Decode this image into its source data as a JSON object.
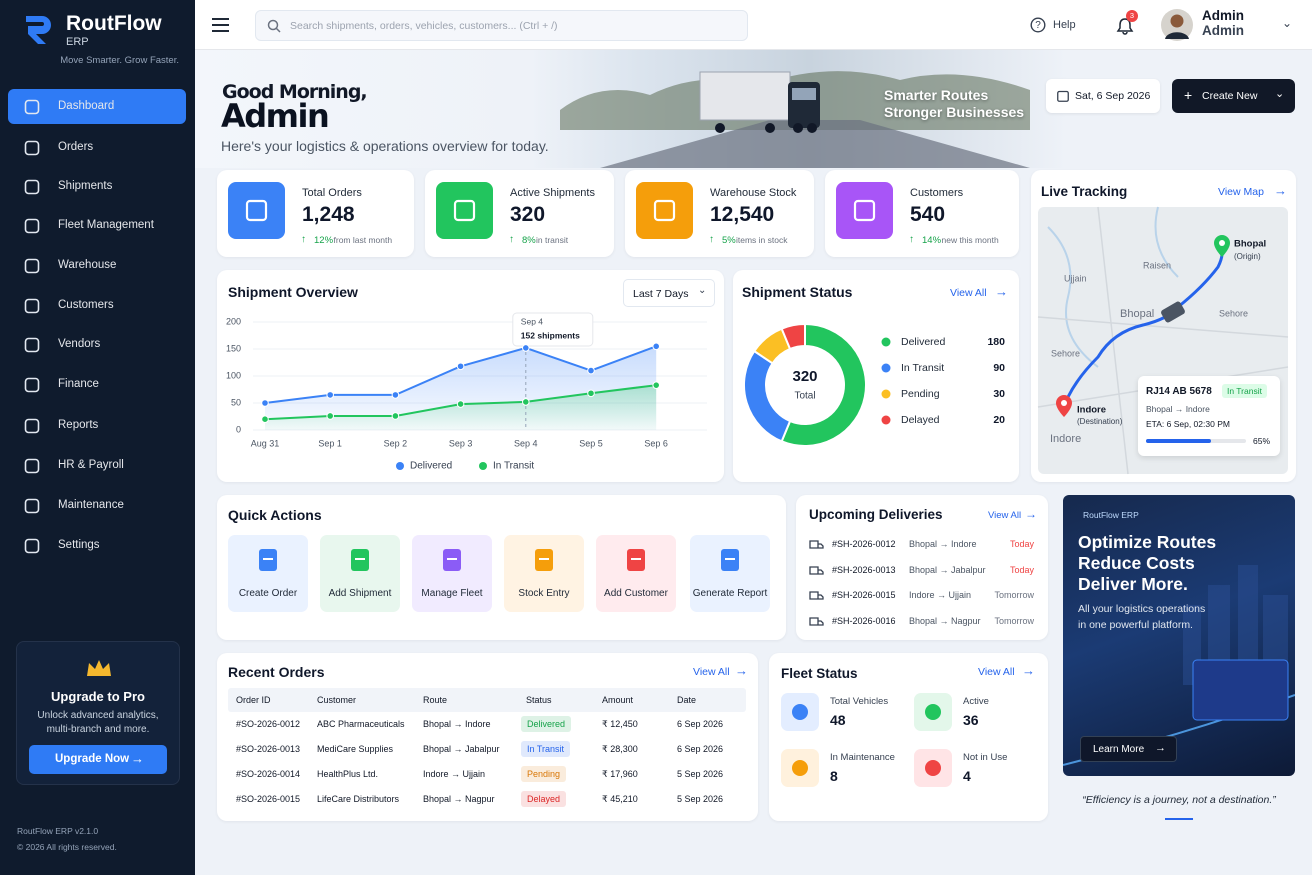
{
  "brand": {
    "name": "RoutFlow",
    "product": "ERP",
    "tagline": "Move Smarter. Grow Faster."
  },
  "nav": [
    {
      "label": "Dashboard",
      "active": true
    },
    {
      "label": "Orders"
    },
    {
      "label": "Shipments"
    },
    {
      "label": "Fleet Management"
    },
    {
      "label": "Warehouse"
    },
    {
      "label": "Customers"
    },
    {
      "label": "Vendors"
    },
    {
      "label": "Finance"
    },
    {
      "label": "Reports"
    },
    {
      "label": "HR & Payroll"
    },
    {
      "label": "Maintenance"
    },
    {
      "label": "Settings"
    }
  ],
  "upgrade": {
    "title": "Upgrade to Pro",
    "lines": [
      "Unlock advanced analytics,",
      "multi-branch and more."
    ],
    "button": "Upgrade Now"
  },
  "footer": {
    "version": "RoutFlow ERP v2.1.0",
    "copyright": "© 2026 All rights reserved."
  },
  "topbar": {
    "search": "Search shipments, orders, vehicles, customers... (Ctrl + /)",
    "help": "Help",
    "notifications": "3",
    "user": "Admin",
    "role": "Admin"
  },
  "hero": {
    "greeting": "Good Morning,",
    "name": "Admin",
    "subtitle": "Here's your logistics & operations overview for today.",
    "banner": [
      "Smarter Routes",
      "Stronger Businesses"
    ],
    "date": "Sat, 6 Sep 2026",
    "create": "Create New"
  },
  "stats": [
    {
      "label": "Total Orders",
      "value": "1,248",
      "change": "12%",
      "note": "from last month",
      "color": "#3b82f6"
    },
    {
      "label": "Active Shipments",
      "value": "320",
      "change": "8%",
      "note": "in transit",
      "color": "#22c55e"
    },
    {
      "label": "Warehouse Stock",
      "value": "12,540",
      "change": "5%",
      "note": "items in stock",
      "color": "#f59e0b"
    },
    {
      "label": "Customers",
      "value": "540",
      "change": "14%",
      "note": "new this month",
      "color": "#a855f7"
    }
  ],
  "chart_data": [
    {
      "type": "line",
      "title": "Shipment Overview",
      "filter": "Last 7 Days",
      "categories": [
        "Aug 31",
        "Sep 1",
        "Sep 2",
        "Sep 3",
        "Sep 4",
        "Sep 5",
        "Sep 6"
      ],
      "series": [
        {
          "name": "Delivered",
          "color": "#3b82f6",
          "values": [
            50,
            65,
            65,
            118,
            152,
            110,
            155
          ]
        },
        {
          "name": "In Transit",
          "color": "#22c55e",
          "values": [
            20,
            26,
            26,
            48,
            52,
            68,
            83
          ]
        }
      ],
      "ylim": [
        0,
        200
      ],
      "yticks": [
        0,
        50,
        100,
        150,
        200
      ],
      "grid": true,
      "tooltip": {
        "date": "Sep 4",
        "text": "152 shipments"
      }
    },
    {
      "type": "pie",
      "title": "Shipment Status",
      "view_all": "View All",
      "total": "320",
      "total_label": "Total",
      "categories": [
        "Delivered",
        "In Transit",
        "Pending",
        "Delayed"
      ],
      "values": [
        180,
        90,
        30,
        20
      ],
      "colors": [
        "#22c55e",
        "#3b82f6",
        "#fbbf24",
        "#ef4444"
      ]
    }
  ],
  "live_tracking": {
    "title": "Live Tracking",
    "view_map": "View Map",
    "places": [
      "Ujjain",
      "Raisen",
      "Bhopal",
      "Sehore",
      "Sehore",
      "Indore"
    ],
    "origin": {
      "name": "Bhopal",
      "note": "(Origin)"
    },
    "destination": {
      "name": "Indore",
      "note": "(Destination)"
    },
    "vehicle": "RJ14 AB 5678",
    "status": "In Transit",
    "route": "Bhopal → Indore",
    "eta": "ETA: 6 Sep, 02:30 PM",
    "progress": 65,
    "progress_label": "65%"
  },
  "quick_actions": {
    "title": "Quick Actions",
    "items": [
      {
        "label": "Create Order",
        "color": "#3b82f6",
        "bg": "#eaf2ff"
      },
      {
        "label": "Add Shipment",
        "color": "#22c55e",
        "bg": "#e8f7ee"
      },
      {
        "label": "Manage Fleet",
        "color": "#8b5cf6",
        "bg": "#f1ebff"
      },
      {
        "label": "Stock Entry",
        "color": "#f59e0b",
        "bg": "#fff3e3"
      },
      {
        "label": "Add Customer",
        "color": "#ef4444",
        "bg": "#ffebee"
      },
      {
        "label": "Generate Report",
        "color": "#3b82f6",
        "bg": "#eaf2ff"
      }
    ]
  },
  "upcoming": {
    "title": "Upcoming Deliveries",
    "view_all": "View All",
    "rows": [
      {
        "id": "#SH-2026-0012",
        "route": "Bhopal → Indore",
        "when": "Today",
        "color": "#ef4444"
      },
      {
        "id": "#SH-2026-0013",
        "route": "Bhopal → Jabalpur",
        "when": "Today",
        "color": "#ef4444"
      },
      {
        "id": "#SH-2026-0015",
        "route": "Indore → Ujjain",
        "when": "Tomorrow",
        "color": "#6b7280"
      },
      {
        "id": "#SH-2026-0016",
        "route": "Bhopal → Nagpur",
        "when": "Tomorrow",
        "color": "#6b7280"
      }
    ]
  },
  "recent_orders": {
    "title": "Recent Orders",
    "view_all": "View All",
    "columns": [
      "Order ID",
      "Customer",
      "Route",
      "Status",
      "Amount",
      "Date"
    ],
    "rows": [
      {
        "id": "#SO-2026-0012",
        "customer": "ABC Pharmaceuticals",
        "route": "Bhopal → Indore",
        "status": "Delivered",
        "amount": "₹ 12,450",
        "date": "6 Sep 2026",
        "color": "#16a34a"
      },
      {
        "id": "#SO-2026-0013",
        "customer": "MediCare Supplies",
        "route": "Bhopal → Jabalpur",
        "status": "In Transit",
        "amount": "₹ 28,300",
        "date": "6 Sep 2026",
        "color": "#2563eb"
      },
      {
        "id": "#SO-2026-0014",
        "customer": "HealthPlus Ltd.",
        "route": "Indore → Ujjain",
        "status": "Pending",
        "amount": "₹ 17,960",
        "date": "5 Sep 2026",
        "color": "#d97706"
      },
      {
        "id": "#SO-2026-0015",
        "customer": "LifeCare Distributors",
        "route": "Bhopal → Nagpur",
        "status": "Delayed",
        "amount": "₹ 45,210",
        "date": "5 Sep 2026",
        "color": "#dc2626"
      }
    ]
  },
  "fleet": {
    "title": "Fleet Status",
    "view_all": "View All",
    "items": [
      {
        "label": "Total Vehicles",
        "value": "48",
        "color": "#3b82f6",
        "bg": "#e3edff"
      },
      {
        "label": "Active",
        "value": "36",
        "color": "#22c55e",
        "bg": "#e3f7ea"
      },
      {
        "label": "In Maintenance",
        "value": "8",
        "color": "#f59e0b",
        "bg": "#fff1dd"
      },
      {
        "label": "Not in Use",
        "value": "4",
        "color": "#ef4444",
        "bg": "#ffe4e6"
      }
    ]
  },
  "promo": {
    "tag": "RoutFlow ERP",
    "headline": [
      "Optimize Routes",
      "Reduce Costs",
      "Deliver More."
    ],
    "text": [
      "All your logistics operations",
      "in one powerful platform."
    ],
    "button": "Learn More",
    "quote": "“Efficiency is a journey, not a destination.”"
  }
}
